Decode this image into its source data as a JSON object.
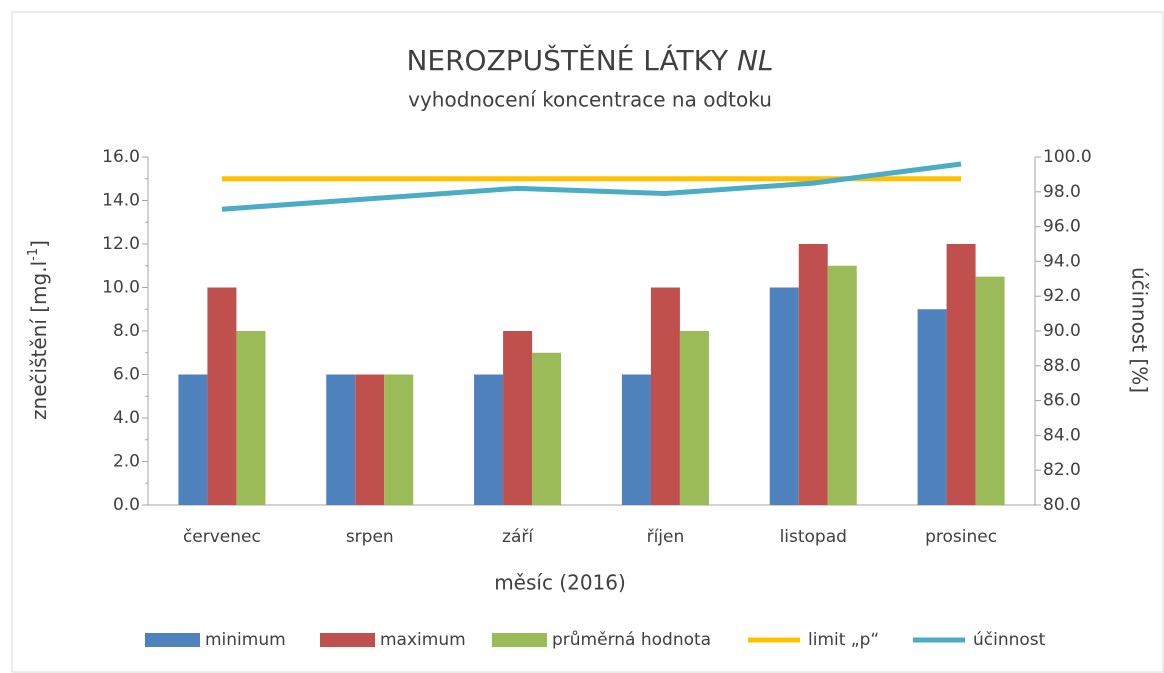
{
  "chart_data": {
    "type": "bar",
    "title": "NEROZPUŠTĚNÉ LÁTKY",
    "title_emphasis": "NL",
    "subtitle": "vyhodnocení koncentrace na odtoku",
    "x_label": "měsíc (2016)",
    "y_label": "znečištění [mg.l",
    "y_label_sup": "-1",
    "y_label_end": "]",
    "y2_label": "účinnost [%]",
    "categories": [
      "červenec",
      "srpen",
      "září",
      "říjen",
      "listopad",
      "prosinec"
    ],
    "series": [
      {
        "name": "minimum",
        "type": "bar",
        "color": "#4f81bd",
        "values": [
          6,
          6,
          6,
          6,
          10,
          9
        ]
      },
      {
        "name": "maximum",
        "type": "bar",
        "color": "#c0504d",
        "values": [
          10,
          6,
          8,
          10,
          12,
          12
        ]
      },
      {
        "name": "průměrná hodnota",
        "type": "bar",
        "color": "#9bbb59",
        "values": [
          8,
          6,
          7,
          8,
          11,
          10.5
        ]
      },
      {
        "name": "limit „p“",
        "type": "line",
        "color": "#ffc000",
        "values": [
          15,
          15,
          15,
          15,
          15,
          15
        ]
      },
      {
        "name": "účinnost",
        "type": "line",
        "axis": "y2",
        "color": "#4bacc6",
        "values": [
          97.0,
          97.6,
          98.2,
          97.9,
          98.5,
          99.6
        ]
      }
    ],
    "ylim": [
      0,
      16
    ],
    "yticks": [
      {
        "value": 0,
        "label": "0.0"
      },
      {
        "value": 2,
        "label": "2.0"
      },
      {
        "value": 4,
        "label": "4.0"
      },
      {
        "value": 6,
        "label": "6.0"
      },
      {
        "value": 8,
        "label": "8.0"
      },
      {
        "value": 10,
        "label": "10.0"
      },
      {
        "value": 12,
        "label": "12.0"
      },
      {
        "value": 14,
        "label": "14.0"
      },
      {
        "value": 16,
        "label": "16.0"
      }
    ],
    "y2lim": [
      80,
      100
    ],
    "y2ticks": [
      {
        "value": 80,
        "label": "80.0"
      },
      {
        "value": 82,
        "label": "82.0"
      },
      {
        "value": 84,
        "label": "84.0"
      },
      {
        "value": 86,
        "label": "86.0"
      },
      {
        "value": 88,
        "label": "88.0"
      },
      {
        "value": 90,
        "label": "90.0"
      },
      {
        "value": 92,
        "label": "92.0"
      },
      {
        "value": 94,
        "label": "94.0"
      },
      {
        "value": 96,
        "label": "96.0"
      },
      {
        "value": 98,
        "label": "98.0"
      },
      {
        "value": 100,
        "label": "100.0"
      }
    ],
    "grid": false,
    "legend": "bottom"
  }
}
